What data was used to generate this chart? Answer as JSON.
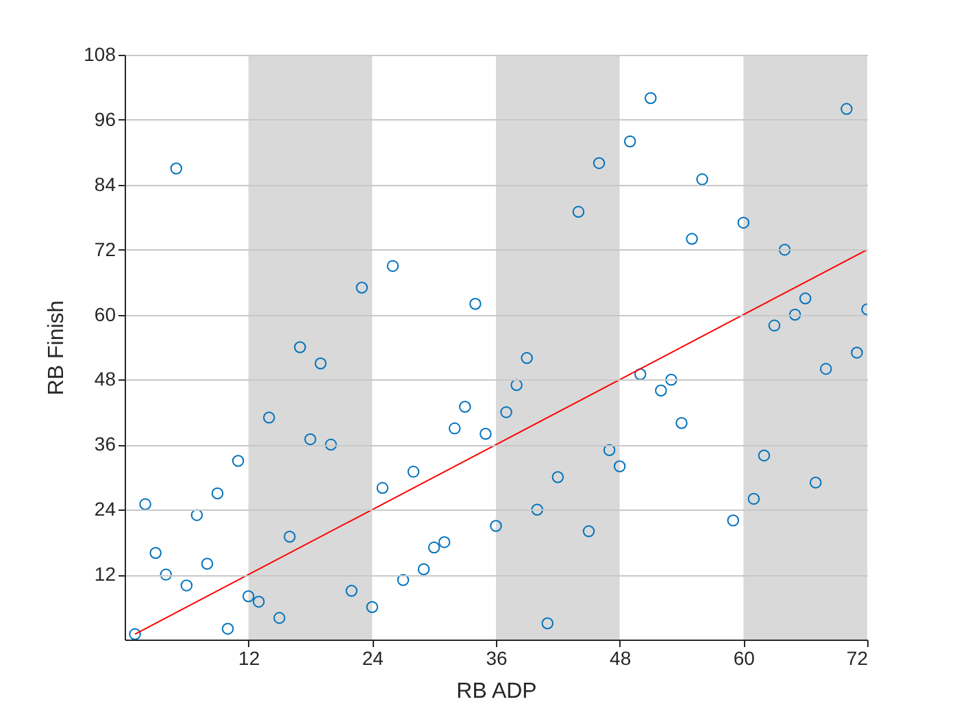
{
  "chart_data": {
    "type": "scatter",
    "xlabel": "RB ADP",
    "ylabel": "RB Finish",
    "xlim": [
      0,
      72
    ],
    "xticks": [
      12,
      24,
      36,
      48,
      60,
      72
    ],
    "ylim": [
      0,
      108
    ],
    "yticks": [
      12,
      24,
      36,
      48,
      60,
      72,
      84,
      96,
      108
    ],
    "grid": "y",
    "marker": "circle",
    "bands": [
      {
        "axis": "x",
        "from": 12,
        "to": 24,
        "color": "#d9d9d9"
      },
      {
        "axis": "x",
        "from": 36,
        "to": 48,
        "color": "#d9d9d9"
      },
      {
        "axis": "x",
        "from": 60,
        "to": 72,
        "color": "#d9d9d9"
      }
    ],
    "series": [
      {
        "color": "#0072bd",
        "x": [
          1,
          2,
          3,
          4,
          5,
          6,
          7,
          8,
          9,
          10,
          11,
          12,
          13,
          14,
          15,
          16,
          17,
          18,
          19,
          20,
          22,
          23,
          24,
          25,
          26,
          27,
          28,
          29,
          30,
          31,
          32,
          33,
          34,
          35,
          36,
          37,
          38,
          39,
          40,
          41,
          42,
          44,
          45,
          46,
          47,
          48,
          49,
          50,
          51,
          52,
          53,
          54,
          55,
          56,
          59,
          60,
          61,
          62,
          63,
          64,
          65,
          66,
          67,
          68,
          70,
          71,
          72
        ],
        "values": [
          1,
          25,
          16,
          12,
          87,
          10,
          23,
          14,
          27,
          2,
          33,
          8,
          7,
          41,
          4,
          19,
          54,
          37,
          51,
          36,
          9,
          65,
          6,
          28,
          69,
          11,
          31,
          13,
          17,
          18,
          39,
          43,
          62,
          38,
          21,
          42,
          47,
          52,
          24,
          3,
          30,
          79,
          20,
          88,
          35,
          32,
          92,
          49,
          100,
          46,
          48,
          40,
          74,
          85,
          22,
          77,
          26,
          34,
          58,
          72,
          60,
          63,
          29,
          50,
          98,
          53,
          61
        ]
      },
      {
        "type": "line",
        "color": "#ff0000",
        "x": [
          1,
          72
        ],
        "values": [
          1,
          72
        ],
        "line_style": "solid",
        "marker": "none"
      }
    ]
  }
}
